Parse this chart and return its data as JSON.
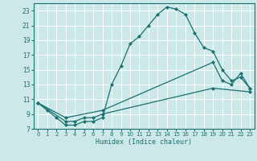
{
  "xlabel": "Humidex (Indice chaleur)",
  "bg_color": "#cce8e8",
  "grid_color": "#ffffff",
  "line_color": "#1a7070",
  "xlim": [
    -0.5,
    23.5
  ],
  "ylim": [
    7,
    24
  ],
  "xticks": [
    0,
    1,
    2,
    3,
    4,
    5,
    6,
    7,
    8,
    9,
    10,
    11,
    12,
    13,
    14,
    15,
    16,
    17,
    18,
    19,
    20,
    21,
    22,
    23
  ],
  "yticks": [
    7,
    9,
    11,
    13,
    15,
    17,
    19,
    21,
    23
  ],
  "line1_x": [
    0,
    1,
    2,
    3,
    4,
    5,
    6,
    7,
    8,
    9,
    10,
    11,
    12,
    13,
    14,
    15,
    16,
    17,
    18,
    19,
    20,
    21,
    22,
    23
  ],
  "line1_y": [
    10.5,
    9.5,
    8.5,
    7.5,
    7.5,
    8.0,
    8.0,
    8.5,
    13.0,
    15.5,
    18.5,
    19.5,
    21.0,
    22.5,
    23.5,
    23.2,
    22.5,
    20.0,
    18.0,
    17.5,
    15.0,
    13.5,
    14.0,
    12.5
  ],
  "line2_x": [
    0,
    3,
    7,
    19,
    20,
    21,
    22,
    23
  ],
  "line2_y": [
    10.5,
    8.5,
    9.5,
    16.0,
    13.5,
    13.0,
    14.5,
    12.5
  ],
  "line3_x": [
    0,
    3,
    4,
    5,
    6,
    7,
    19,
    23
  ],
  "line3_y": [
    10.5,
    8.0,
    8.0,
    8.5,
    8.5,
    9.0,
    12.5,
    12.0
  ]
}
